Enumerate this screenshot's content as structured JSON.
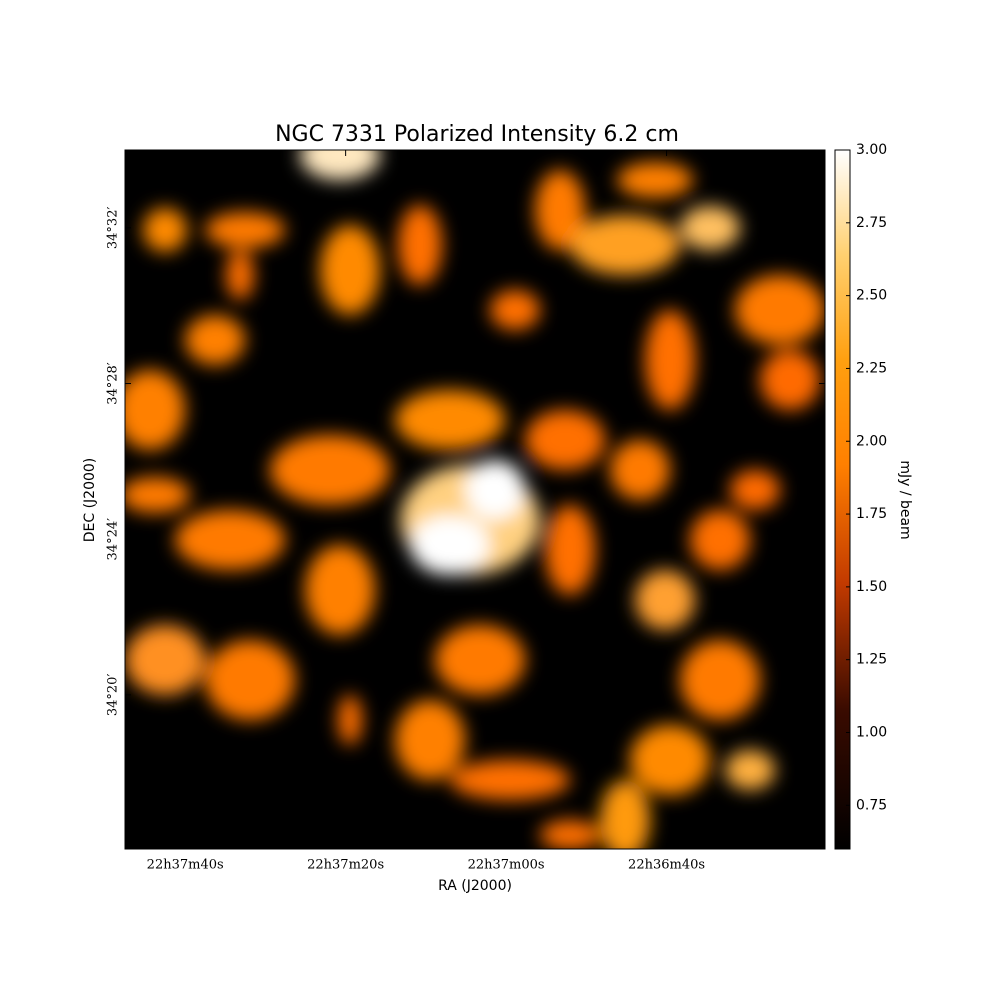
{
  "chart_data": {
    "type": "image",
    "title": "NGC 7331 Polarized Intensity 6.2 cm",
    "xlabel": "RA (J2000)",
    "ylabel": "DEC (J2000)",
    "colorbar_label": "mJy / beam",
    "xlim": [
      2267.5,
      2180.25
    ],
    "xticks": [
      {
        "value": 2260,
        "label": "22h37m40s"
      },
      {
        "value": 2240,
        "label": "22h37m20s"
      },
      {
        "value": 2220,
        "label": "22h37m00s"
      },
      {
        "value": 2200,
        "label": "22h36m40s"
      }
    ],
    "ylim": [
      16.04,
      34.0
    ],
    "yticks": [
      {
        "value": 32,
        "label": "34°32′"
      },
      {
        "value": 28,
        "label": "34°28′"
      },
      {
        "value": 24,
        "label": "34°24′"
      },
      {
        "value": 20,
        "label": "34°20′"
      }
    ],
    "clim": [
      0.6,
      3.0
    ],
    "cticks": [
      0.75,
      {
        "value": 1,
        "label": "1.00"
      },
      1.25,
      {
        "value": 1.5,
        "label": "1.50"
      },
      1.75,
      {
        "value": 2,
        "label": "2.00"
      },
      2.25,
      {
        "value": 2.5,
        "label": "2.50"
      },
      2.75,
      {
        "value": 3,
        "label": "3.00"
      }
    ]
  }
}
